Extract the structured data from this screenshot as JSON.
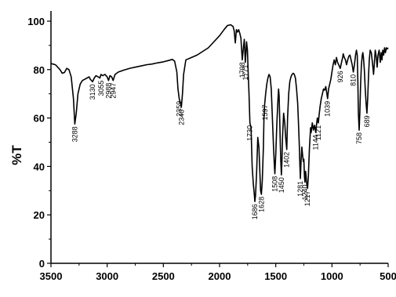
{
  "chart_data": {
    "type": "line",
    "title": "",
    "xlabel": "",
    "ylabel": "%T",
    "xlim": [
      3500,
      500
    ],
    "ylim": [
      0,
      100
    ],
    "x_ticks": [
      3500,
      3000,
      2500,
      2000,
      1500,
      1000,
      500
    ],
    "y_ticks": [
      0,
      20,
      40,
      60,
      80,
      100
    ],
    "grid": false,
    "legend": "none",
    "line_color": "#000000",
    "series": [
      {
        "points": [
          [
            3500,
            82.5
          ],
          [
            3460,
            82
          ],
          [
            3420,
            80
          ],
          [
            3400,
            78.5
          ],
          [
            3380,
            78.8
          ],
          [
            3360,
            80.5
          ],
          [
            3340,
            80
          ],
          [
            3320,
            77
          ],
          [
            3300,
            68
          ],
          [
            3288,
            57.5
          ],
          [
            3275,
            62
          ],
          [
            3260,
            70
          ],
          [
            3240,
            74
          ],
          [
            3220,
            75.5
          ],
          [
            3200,
            76
          ],
          [
            3180,
            76.5
          ],
          [
            3160,
            77
          ],
          [
            3150,
            76
          ],
          [
            3130,
            75
          ],
          [
            3115,
            76.5
          ],
          [
            3100,
            77.5
          ],
          [
            3080,
            77
          ],
          [
            3065,
            76.5
          ],
          [
            3055,
            78
          ],
          [
            3040,
            77.5
          ],
          [
            3020,
            78
          ],
          [
            3000,
            77
          ],
          [
            2988,
            75.5
          ],
          [
            2975,
            77.5
          ],
          [
            2960,
            77
          ],
          [
            2947,
            75.5
          ],
          [
            2930,
            78
          ],
          [
            2900,
            79
          ],
          [
            2850,
            79.8
          ],
          [
            2800,
            80.5
          ],
          [
            2750,
            81
          ],
          [
            2700,
            81.5
          ],
          [
            2650,
            82
          ],
          [
            2600,
            82.3
          ],
          [
            2550,
            82.8
          ],
          [
            2500,
            83.2
          ],
          [
            2450,
            83.8
          ],
          [
            2420,
            84.2
          ],
          [
            2400,
            83.5
          ],
          [
            2380,
            79
          ],
          [
            2370,
            72
          ],
          [
            2359,
            68
          ],
          [
            2350,
            66.5
          ],
          [
            2340,
            64.5
          ],
          [
            2330,
            70
          ],
          [
            2320,
            78
          ],
          [
            2300,
            84
          ],
          [
            2250,
            85
          ],
          [
            2200,
            86
          ],
          [
            2150,
            87.5
          ],
          [
            2100,
            89
          ],
          [
            2050,
            91.5
          ],
          [
            2000,
            94
          ],
          [
            1960,
            96.5
          ],
          [
            1930,
            98.2
          ],
          [
            1900,
            98.5
          ],
          [
            1880,
            97.8
          ],
          [
            1870,
            96
          ],
          [
            1860,
            91
          ],
          [
            1850,
            96.5
          ],
          [
            1840,
            95.5
          ],
          [
            1830,
            96.5
          ],
          [
            1820,
            95
          ],
          [
            1810,
            93
          ],
          [
            1798,
            84
          ],
          [
            1790,
            88
          ],
          [
            1780,
            92.5
          ],
          [
            1771,
            83
          ],
          [
            1765,
            87
          ],
          [
            1760,
            91.5
          ],
          [
            1752,
            88
          ],
          [
            1745,
            78
          ],
          [
            1738,
            70
          ],
          [
            1730,
            58
          ],
          [
            1720,
            56
          ],
          [
            1710,
            40
          ],
          [
            1700,
            33
          ],
          [
            1690,
            28
          ],
          [
            1686,
            25.5
          ],
          [
            1680,
            28
          ],
          [
            1670,
            38
          ],
          [
            1660,
            52
          ],
          [
            1650,
            48
          ],
          [
            1640,
            36
          ],
          [
            1635,
            30
          ],
          [
            1628,
            28.5
          ],
          [
            1620,
            34
          ],
          [
            1610,
            48
          ],
          [
            1605,
            60
          ],
          [
            1600,
            65
          ],
          [
            1597,
            66.5
          ],
          [
            1590,
            70
          ],
          [
            1580,
            74
          ],
          [
            1570,
            76.5
          ],
          [
            1560,
            78
          ],
          [
            1550,
            77
          ],
          [
            1540,
            72
          ],
          [
            1530,
            60
          ],
          [
            1520,
            48
          ],
          [
            1512,
            40
          ],
          [
            1508,
            37
          ],
          [
            1500,
            45
          ],
          [
            1490,
            58
          ],
          [
            1480,
            68
          ],
          [
            1475,
            72
          ],
          [
            1470,
            69
          ],
          [
            1465,
            60
          ],
          [
            1460,
            50
          ],
          [
            1455,
            42
          ],
          [
            1450,
            36.5
          ],
          [
            1445,
            42
          ],
          [
            1440,
            52
          ],
          [
            1430,
            62
          ],
          [
            1420,
            58
          ],
          [
            1412,
            52
          ],
          [
            1402,
            47
          ],
          [
            1395,
            60
          ],
          [
            1385,
            70
          ],
          [
            1375,
            75
          ],
          [
            1365,
            77
          ],
          [
            1355,
            78
          ],
          [
            1345,
            78.5
          ],
          [
            1335,
            78
          ],
          [
            1325,
            76.5
          ],
          [
            1315,
            72
          ],
          [
            1305,
            66
          ],
          [
            1298,
            58
          ],
          [
            1290,
            48
          ],
          [
            1285,
            40
          ],
          [
            1281,
            35
          ],
          [
            1275,
            42
          ],
          [
            1268,
            48
          ],
          [
            1262,
            45
          ],
          [
            1255,
            42
          ],
          [
            1250,
            43
          ],
          [
            1245,
            36
          ],
          [
            1240,
            33.5
          ],
          [
            1235,
            38
          ],
          [
            1230,
            36
          ],
          [
            1225,
            33
          ],
          [
            1217,
            31
          ],
          [
            1210,
            36
          ],
          [
            1200,
            48
          ],
          [
            1190,
            56
          ],
          [
            1185,
            54
          ],
          [
            1175,
            58
          ],
          [
            1165,
            55
          ],
          [
            1155,
            57
          ],
          [
            1144,
            54
          ],
          [
            1138,
            57
          ],
          [
            1130,
            60
          ],
          [
            1121,
            58
          ],
          [
            1115,
            61
          ],
          [
            1105,
            65
          ],
          [
            1095,
            68
          ],
          [
            1085,
            70
          ],
          [
            1075,
            72
          ],
          [
            1065,
            71.5
          ],
          [
            1055,
            73
          ],
          [
            1045,
            70
          ],
          [
            1039,
            68
          ],
          [
            1030,
            72
          ],
          [
            1020,
            74
          ],
          [
            1010,
            76
          ],
          [
            1000,
            79
          ],
          [
            990,
            82
          ],
          [
            980,
            84
          ],
          [
            970,
            82
          ],
          [
            960,
            85
          ],
          [
            950,
            83
          ],
          [
            940,
            82
          ],
          [
            926,
            80.5
          ],
          [
            915,
            83
          ],
          [
            905,
            85
          ],
          [
            900,
            86.5
          ],
          [
            890,
            85
          ],
          [
            880,
            84
          ],
          [
            870,
            82
          ],
          [
            860,
            84
          ],
          [
            850,
            85.5
          ],
          [
            840,
            86
          ],
          [
            830,
            84
          ],
          [
            820,
            82
          ],
          [
            810,
            79
          ],
          [
            800,
            82
          ],
          [
            790,
            86
          ],
          [
            782,
            88
          ],
          [
            775,
            86
          ],
          [
            770,
            76
          ],
          [
            765,
            62
          ],
          [
            758,
            55
          ],
          [
            752,
            62
          ],
          [
            745,
            74
          ],
          [
            738,
            82
          ],
          [
            730,
            86
          ],
          [
            725,
            87
          ],
          [
            720,
            85
          ],
          [
            712,
            80
          ],
          [
            704,
            72
          ],
          [
            696,
            66
          ],
          [
            689,
            62
          ],
          [
            682,
            68
          ],
          [
            675,
            77
          ],
          [
            668,
            84
          ],
          [
            660,
            88
          ],
          [
            650,
            87
          ],
          [
            640,
            83
          ],
          [
            630,
            78
          ],
          [
            622,
            83
          ],
          [
            615,
            88
          ],
          [
            605,
            85
          ],
          [
            598,
            81
          ],
          [
            590,
            86
          ],
          [
            580,
            88
          ],
          [
            570,
            83
          ],
          [
            562,
            87
          ],
          [
            555,
            84
          ],
          [
            548,
            88
          ],
          [
            540,
            86
          ],
          [
            532,
            89
          ],
          [
            524,
            87
          ],
          [
            516,
            89
          ],
          [
            508,
            88.5
          ],
          [
            500,
            89
          ]
        ]
      }
    ],
    "peak_labels": [
      {
        "text": "3288",
        "x": 3288,
        "y": 57.5
      },
      {
        "text": "3130",
        "x": 3130,
        "y": 75
      },
      {
        "text": "3055",
        "x": 3055,
        "y": 76.5
      },
      {
        "text": "2988",
        "x": 2988,
        "y": 75.5
      },
      {
        "text": "2947",
        "x": 2947,
        "y": 75.5
      },
      {
        "text": "2359",
        "x": 2359,
        "y": 68
      },
      {
        "text": "2340",
        "x": 2340,
        "y": 64.5
      },
      {
        "text": "1798",
        "x": 1798,
        "y": 84
      },
      {
        "text": "1771",
        "x": 1771,
        "y": 83
      },
      {
        "text": "1730",
        "x": 1730,
        "y": 58
      },
      {
        "text": "1686",
        "x": 1686,
        "y": 25.5
      },
      {
        "text": "1628",
        "x": 1628,
        "y": 28.5
      },
      {
        "text": "1597",
        "x": 1597,
        "y": 66.5
      },
      {
        "text": "1508",
        "x": 1508,
        "y": 37
      },
      {
        "text": "1450",
        "x": 1450,
        "y": 36.5
      },
      {
        "text": "1402",
        "x": 1402,
        "y": 47
      },
      {
        "text": "1281",
        "x": 1281,
        "y": 35
      },
      {
        "text": "1240",
        "x": 1240,
        "y": 33.5
      },
      {
        "text": "1217",
        "x": 1217,
        "y": 31
      },
      {
        "text": "1144",
        "x": 1144,
        "y": 54
      },
      {
        "text": "1121",
        "x": 1121,
        "y": 58
      },
      {
        "text": "1039",
        "x": 1039,
        "y": 68
      },
      {
        "text": "926",
        "x": 926,
        "y": 80.5
      },
      {
        "text": "810",
        "x": 810,
        "y": 79
      },
      {
        "text": "758",
        "x": 758,
        "y": 55
      },
      {
        "text": "689",
        "x": 689,
        "y": 62
      }
    ]
  }
}
